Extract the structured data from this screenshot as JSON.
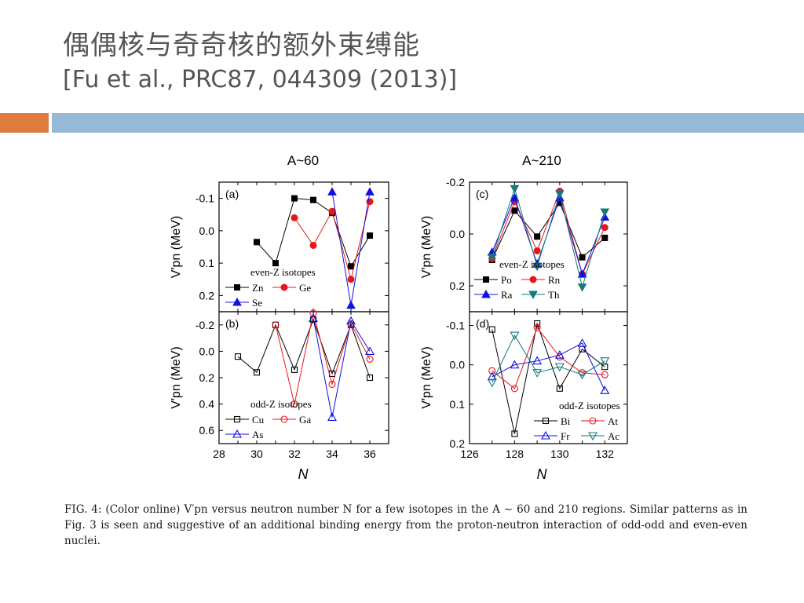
{
  "slide": {
    "title_cn": "偶偶核与奇奇核的额外束缚能",
    "title_ref": "[Fu et al., PRC87, 044309 (2013)]"
  },
  "caption": "FIG. 4: (Color online) V′pn versus neutron number N for a few isotopes in the A ∼ 60 and 210 regions. Similar patterns as in Fig. 3 is seen and suggestive of an additional binding energy from the proton-neutron interaction of odd-odd and even-even nuclei.",
  "colors": {
    "Zn": "#000000",
    "Ge": "#e8161b",
    "Se": "#1010e0",
    "Po": "#000000",
    "Rn": "#e8161b",
    "Ra": "#1010e0",
    "Th": "#157a7a"
  },
  "figure_labels": {
    "left_header": "A~60",
    "right_header": "A~210",
    "x_label": "N",
    "y_label": "V′pn (MeV)"
  },
  "chart_data": [
    {
      "type": "line",
      "panel": "(a)",
      "ylim": [
        0.25,
        -0.15
      ],
      "xlim": [
        28,
        37
      ],
      "yticks": [
        -0.1,
        0.0,
        0.1,
        0.2
      ],
      "ytick_labels": [
        "-0.1",
        "0.0",
        "0.1",
        "0.2"
      ],
      "legend_title": "even-Z isotopes",
      "legend_position": "bottom-left",
      "marker_fill": "filled",
      "series": [
        {
          "name": "Zn",
          "marker": "square",
          "color": "#000000",
          "x": [
            30,
            31,
            32,
            33,
            34,
            35,
            36
          ],
          "y": [
            0.035,
            0.1,
            -0.1,
            -0.095,
            -0.055,
            0.11,
            0.015
          ]
        },
        {
          "name": "Ge",
          "marker": "circle",
          "color": "#e8161b",
          "x": [
            32,
            33,
            34,
            35,
            36
          ],
          "y": [
            -0.04,
            0.045,
            -0.06,
            0.15,
            -0.09
          ]
        },
        {
          "name": "Se",
          "marker": "triangle-up",
          "color": "#1010e0",
          "x": [
            34,
            35,
            36
          ],
          "y": [
            -0.12,
            0.23,
            -0.12
          ]
        }
      ]
    },
    {
      "type": "line",
      "panel": "(b)",
      "ylim": [
        0.7,
        -0.3
      ],
      "xlim": [
        28,
        37
      ],
      "xticks": [
        28,
        30,
        32,
        34,
        36
      ],
      "yticks": [
        -0.2,
        0.0,
        0.2,
        0.4,
        0.6
      ],
      "ytick_labels": [
        "-0.2",
        "0.0",
        "0.2",
        "0.4",
        "0.6"
      ],
      "legend_title": "odd-Z isotopes",
      "legend_position": "bottom-left",
      "marker_fill": "open",
      "series": [
        {
          "name": "Cu",
          "marker": "square",
          "color": "#000000",
          "x": [
            29,
            30,
            31,
            32,
            33,
            34,
            35,
            36
          ],
          "y": [
            0.04,
            0.16,
            -0.2,
            0.14,
            -0.24,
            0.17,
            -0.2,
            0.2
          ]
        },
        {
          "name": "Ga",
          "marker": "circle",
          "color": "#e8161b",
          "x": [
            31,
            32,
            33,
            34,
            35,
            36
          ],
          "y": [
            -0.2,
            0.4,
            -0.29,
            0.25,
            -0.21,
            0.06
          ]
        },
        {
          "name": "As",
          "marker": "triangle-up",
          "color": "#1010e0",
          "x": [
            33,
            34,
            35,
            36
          ],
          "y": [
            -0.25,
            0.5,
            -0.23,
            0.0
          ]
        }
      ]
    },
    {
      "type": "line",
      "panel": "(c)",
      "ylim": [
        0.3,
        -0.2
      ],
      "xlim": [
        126,
        133
      ],
      "yticks": [
        -0.2,
        0.0,
        0.2
      ],
      "ytick_labels": [
        "-0.2",
        "0.0",
        "0.2"
      ],
      "legend_title": "even-Z isotopes",
      "legend_position": "bottom-left",
      "marker_fill": "filled",
      "series": [
        {
          "name": "Po",
          "marker": "square",
          "color": "#000000",
          "x": [
            127,
            128,
            129,
            130,
            131,
            132
          ],
          "y": [
            0.1,
            -0.09,
            0.01,
            -0.12,
            0.09,
            0.015
          ]
        },
        {
          "name": "Rn",
          "marker": "circle",
          "color": "#e8161b",
          "x": [
            127,
            128,
            129,
            130,
            131,
            132
          ],
          "y": [
            0.095,
            -0.125,
            0.065,
            -0.165,
            0.155,
            -0.025
          ]
        },
        {
          "name": "Ra",
          "marker": "triangle-up",
          "color": "#1010e0",
          "x": [
            127,
            128,
            129,
            130,
            131,
            132
          ],
          "y": [
            0.07,
            -0.14,
            0.115,
            -0.14,
            0.155,
            -0.065
          ]
        },
        {
          "name": "Th",
          "marker": "triangle-down",
          "color": "#157a7a",
          "x": [
            127,
            128,
            129,
            130,
            131,
            132
          ],
          "y": [
            0.09,
            -0.175,
            0.125,
            -0.155,
            0.205,
            -0.085
          ]
        }
      ]
    },
    {
      "type": "line",
      "panel": "(d)",
      "ylim": [
        0.2,
        -0.135
      ],
      "xlim": [
        126,
        133
      ],
      "xticks": [
        126,
        128,
        130,
        132
      ],
      "yticks": [
        -0.1,
        0.0,
        0.1,
        0.2
      ],
      "ytick_labels": [
        "-0.1",
        "0.0",
        "0.1",
        "0.2"
      ],
      "legend_title": "odd-Z isotopes",
      "legend_position": "bottom-right",
      "marker_fill": "open",
      "series": [
        {
          "name": "Bi",
          "marker": "square",
          "color": "#000000",
          "x": [
            127,
            128,
            129,
            130,
            131,
            132
          ],
          "y": [
            -0.09,
            0.175,
            -0.105,
            0.06,
            -0.04,
            0.005
          ]
        },
        {
          "name": "At",
          "marker": "circle",
          "color": "#e8161b",
          "x": [
            127,
            128,
            129,
            130,
            131,
            132
          ],
          "y": [
            0.015,
            0.06,
            -0.095,
            -0.02,
            0.02,
            0.025
          ]
        },
        {
          "name": "Fr",
          "marker": "triangle-up",
          "color": "#1010e0",
          "x": [
            127,
            128,
            129,
            130,
            131,
            132
          ],
          "y": [
            0.03,
            0.0,
            -0.01,
            -0.025,
            -0.055,
            0.065
          ]
        },
        {
          "name": "Ac",
          "marker": "triangle-down",
          "color": "#157a7a",
          "x": [
            127,
            128,
            129,
            130,
            131,
            132
          ],
          "y": [
            0.045,
            -0.075,
            0.02,
            0.005,
            0.025,
            -0.01
          ]
        }
      ]
    }
  ]
}
